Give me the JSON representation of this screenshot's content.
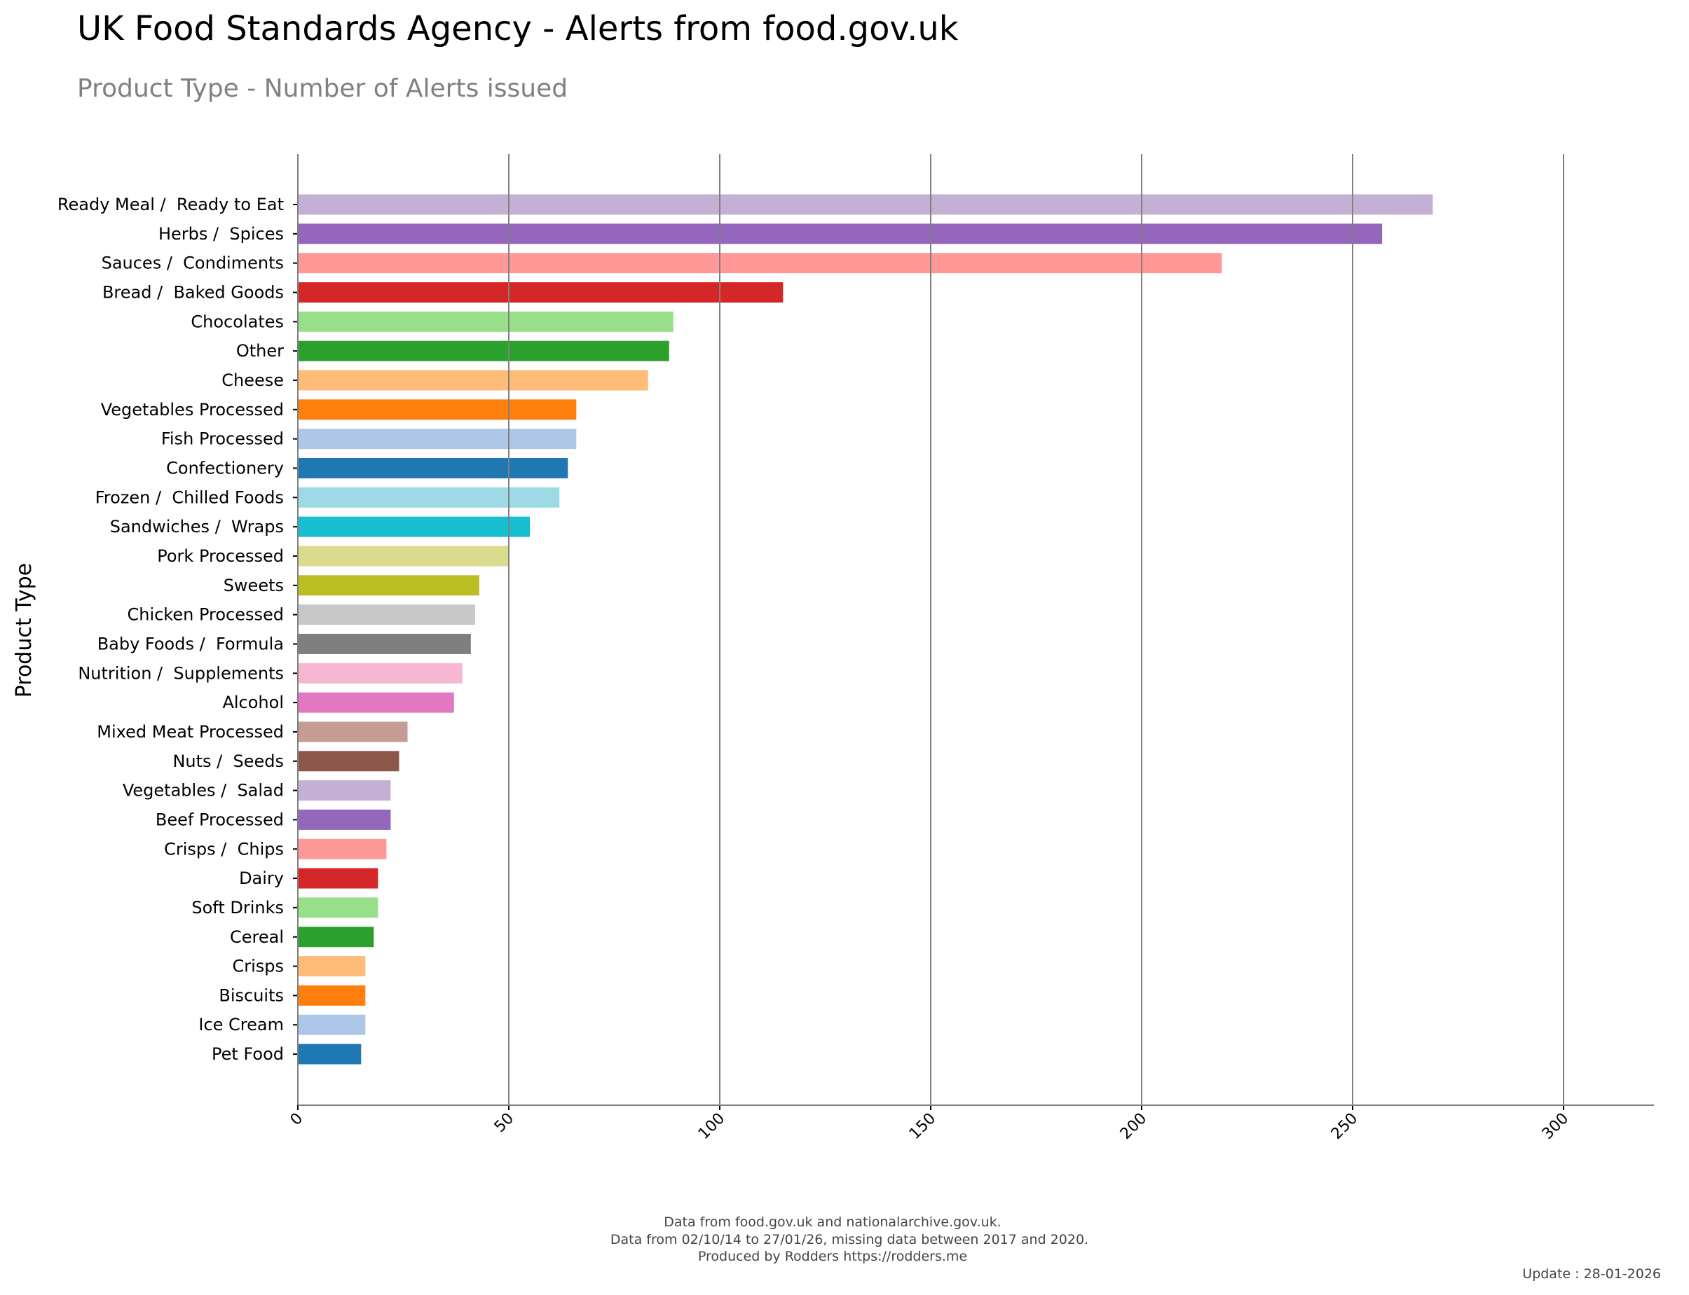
{
  "chart_data": {
    "type": "bar",
    "orientation": "horizontal",
    "title": "UK Food Standards Agency - Alerts from food.gov.uk",
    "subtitle": "Product Type - Number of Alerts issued",
    "xlabel": "",
    "ylabel": "Product Type",
    "xlim": [
      0,
      322
    ],
    "xticks": [
      0,
      50,
      100,
      150,
      200,
      250,
      300
    ],
    "grid": "vertical",
    "categories": [
      "Ready Meal /  Ready to Eat",
      "Herbs /  Spices",
      "Sauces /  Condiments",
      "Bread /  Baked Goods",
      "Chocolates",
      "Other",
      "Cheese",
      "Vegetables Processed",
      "Fish Processed",
      "Confectionery",
      "Frozen /  Chilled Foods",
      "Sandwiches /  Wraps",
      "Pork Processed",
      "Sweets",
      "Chicken Processed",
      "Baby Foods /  Formula",
      "Nutrition /  Supplements",
      "Alcohol",
      "Mixed Meat Processed",
      "Nuts /  Seeds",
      "Vegetables /  Salad",
      "Beef Processed",
      "Crisps /  Chips",
      "Dairy",
      "Soft Drinks",
      "Cereal",
      "Crisps",
      "Biscuits",
      "Ice Cream",
      "Pet Food"
    ],
    "values": [
      269,
      257,
      219,
      115,
      89,
      88,
      83,
      66,
      66,
      64,
      62,
      55,
      50,
      43,
      42,
      41,
      39,
      37,
      26,
      24,
      22,
      22,
      21,
      19,
      19,
      18,
      16,
      16,
      16,
      15
    ],
    "colors": [
      "#c5b0d5",
      "#9467bd",
      "#ff9896",
      "#d62728",
      "#98df8a",
      "#2ca02c",
      "#ffbb78",
      "#ff7f0e",
      "#aec7e8",
      "#1f77b4",
      "#9edae5",
      "#17becf",
      "#dbdb8d",
      "#bcbd22",
      "#c7c7c7",
      "#7f7f7f",
      "#f7b6d2",
      "#e377c2",
      "#c49c94",
      "#8c564b",
      "#c5b0d5",
      "#9467bd",
      "#ff9896",
      "#d62728",
      "#98df8a",
      "#2ca02c",
      "#ffbb78",
      "#ff7f0e",
      "#aec7e8",
      "#1f77b4"
    ]
  },
  "footer": {
    "line1": "Data from food.gov.uk and nationalarchive.gov.uk.",
    "line2": "Data from 02/10/14 to 27/01/26, missing data between 2017 and 2020.",
    "line3": "Produced by Rodders https://rodders.me",
    "update": "Update : 28-01-2026"
  }
}
